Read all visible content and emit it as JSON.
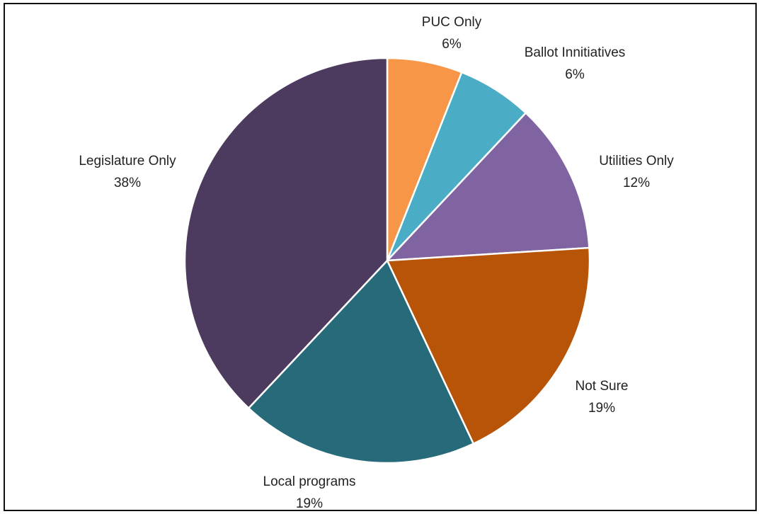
{
  "chart_data": {
    "type": "pie",
    "start_angle_deg": 0,
    "direction": "clockwise",
    "slices": [
      {
        "label": "PUC Only",
        "value": 6,
        "value_label": "6%",
        "color": "#F79646"
      },
      {
        "label": "Ballot Innitiatives",
        "value": 6,
        "value_label": "6%",
        "color": "#4BACC6"
      },
      {
        "label": "Utilities Only",
        "value": 12,
        "value_label": "12%",
        "color": "#8064A2"
      },
      {
        "label": "Not Sure",
        "value": 19,
        "value_label": "19%",
        "color": "#B75408"
      },
      {
        "label": "Local programs",
        "value": 19,
        "value_label": "19%",
        "color": "#276B7B"
      },
      {
        "label": "Legislature Only",
        "value": 38,
        "value_label": "38%",
        "color": "#4D3A5F"
      }
    ],
    "title": "",
    "legend": "none",
    "data_labels": "outside"
  }
}
